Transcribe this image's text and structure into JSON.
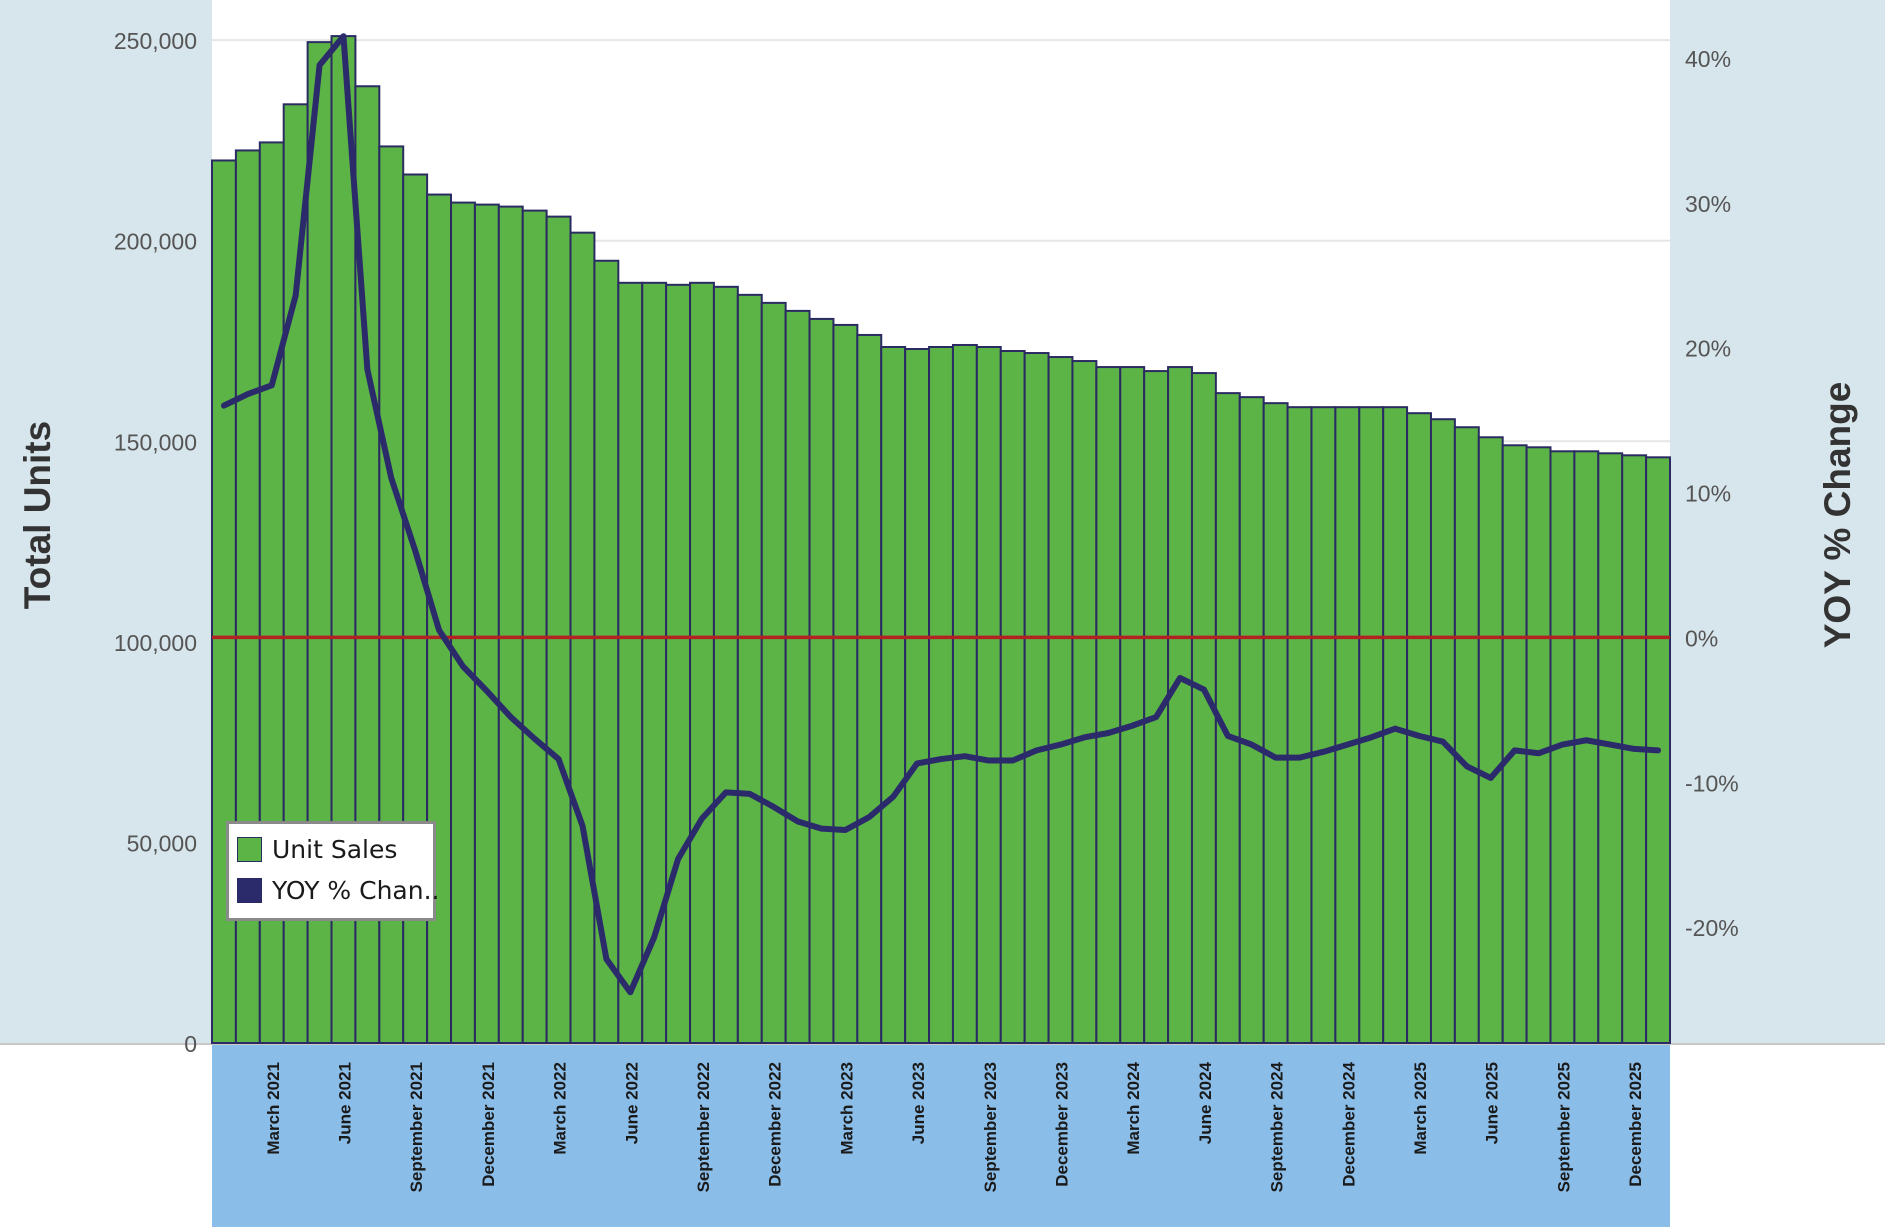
{
  "colors": {
    "left_panel_bg": "#d7e5ec",
    "right_panel_bg": "#d7e5ec",
    "x_axis_bg": "#8bbde9",
    "plot_bg": "#ffffff",
    "bar_fill": "#5cb346",
    "bar_stroke": "#2b2b63",
    "line": "#2b2a6b",
    "zero_line": "#b22222",
    "gridline": "#e6e6e6",
    "tick_text": "#555555",
    "axis_title": "#333333"
  },
  "legend": {
    "items": [
      {
        "label": "Unit Sales",
        "color": "#5cb346"
      },
      {
        "label": "YOY % Chan..",
        "color": "#2b2a6b"
      }
    ]
  },
  "chart_data": {
    "type": "bar",
    "combo": "bar + line (dual axis)",
    "title": "",
    "xlabel": "",
    "ylabel": "Total Units",
    "y2label": "YOY % Change",
    "ylim": [
      0,
      260000
    ],
    "y2lim": [
      -0.28,
      0.44
    ],
    "y_ticks": [
      {
        "value": 0,
        "label": "0"
      },
      {
        "value": 50000,
        "label": "50,000"
      },
      {
        "value": 100000,
        "label": "100,000"
      },
      {
        "value": 150000,
        "label": "150,000"
      },
      {
        "value": 200000,
        "label": "200,000"
      },
      {
        "value": 250000,
        "label": "250,000"
      }
    ],
    "y2_ticks": [
      {
        "value": -0.2,
        "label": "-20%"
      },
      {
        "value": -0.1,
        "label": "-10%"
      },
      {
        "value": 0,
        "label": "0%"
      },
      {
        "value": 0.1,
        "label": "10%"
      },
      {
        "value": 0.2,
        "label": "20%"
      },
      {
        "value": 0.3,
        "label": "30%"
      },
      {
        "value": 0.4,
        "label": "40%"
      }
    ],
    "x_tick_labels": [
      {
        "index": 2,
        "label": "March 2021"
      },
      {
        "index": 5,
        "label": "June 2021"
      },
      {
        "index": 8,
        "label": "September 2021"
      },
      {
        "index": 11,
        "label": "December 2021"
      },
      {
        "index": 14,
        "label": "March 2022"
      },
      {
        "index": 17,
        "label": "June 2022"
      },
      {
        "index": 20,
        "label": "September 2022"
      },
      {
        "index": 23,
        "label": "December 2022"
      },
      {
        "index": 26,
        "label": "March 2023"
      },
      {
        "index": 29,
        "label": "June 2023"
      },
      {
        "index": 32,
        "label": "September 2023"
      },
      {
        "index": 35,
        "label": "December 2023"
      },
      {
        "index": 38,
        "label": "March 2024"
      },
      {
        "index": 41,
        "label": "June 2024"
      },
      {
        "index": 44,
        "label": "September 2024"
      },
      {
        "index": 47,
        "label": "December 2024"
      },
      {
        "index": 50,
        "label": "March 2025"
      },
      {
        "index": 53,
        "label": "June 2025"
      },
      {
        "index": 56,
        "label": "September 2025"
      },
      {
        "index": 59,
        "label": "December 2025"
      }
    ],
    "series": [
      {
        "name": "Unit Sales",
        "type": "bar",
        "axis": "left",
        "values": [
          220000,
          222500,
          224500,
          234000,
          249500,
          251000,
          238500,
          223500,
          216500,
          211500,
          209500,
          209000,
          208500,
          207500,
          206000,
          202000,
          195000,
          189500,
          189500,
          189000,
          189500,
          188500,
          186500,
          184500,
          182500,
          180500,
          179000,
          176500,
          173500,
          173000,
          173500,
          174000,
          173500,
          172500,
          172000,
          171000,
          170000,
          168500,
          168500,
          167500,
          168500,
          167000,
          162000,
          161000,
          159500,
          158500,
          158500,
          158500,
          158500,
          158500,
          157000,
          155500,
          153500,
          151000,
          149000,
          148500,
          147500,
          147500,
          147000,
          146500,
          146000
        ]
      },
      {
        "name": "YOY % Change",
        "type": "line",
        "axis": "right",
        "values": [
          0.16,
          0.168,
          0.174,
          0.236,
          0.395,
          0.415,
          0.185,
          0.11,
          0.06,
          0.005,
          -0.02,
          -0.037,
          -0.055,
          -0.07,
          -0.084,
          -0.13,
          -0.222,
          -0.245,
          -0.207,
          -0.153,
          -0.125,
          -0.107,
          -0.108,
          -0.117,
          -0.127,
          -0.132,
          -0.133,
          -0.124,
          -0.11,
          -0.087,
          -0.084,
          -0.082,
          -0.085,
          -0.085,
          -0.078,
          -0.074,
          -0.069,
          -0.066,
          -0.061,
          -0.055,
          -0.028,
          -0.036,
          -0.068,
          -0.074,
          -0.083,
          -0.083,
          -0.079,
          -0.074,
          -0.069,
          -0.063,
          -0.068,
          -0.072,
          -0.089,
          -0.097,
          -0.078,
          -0.08,
          -0.074,
          -0.071,
          -0.074,
          -0.077,
          -0.078
        ]
      }
    ]
  }
}
